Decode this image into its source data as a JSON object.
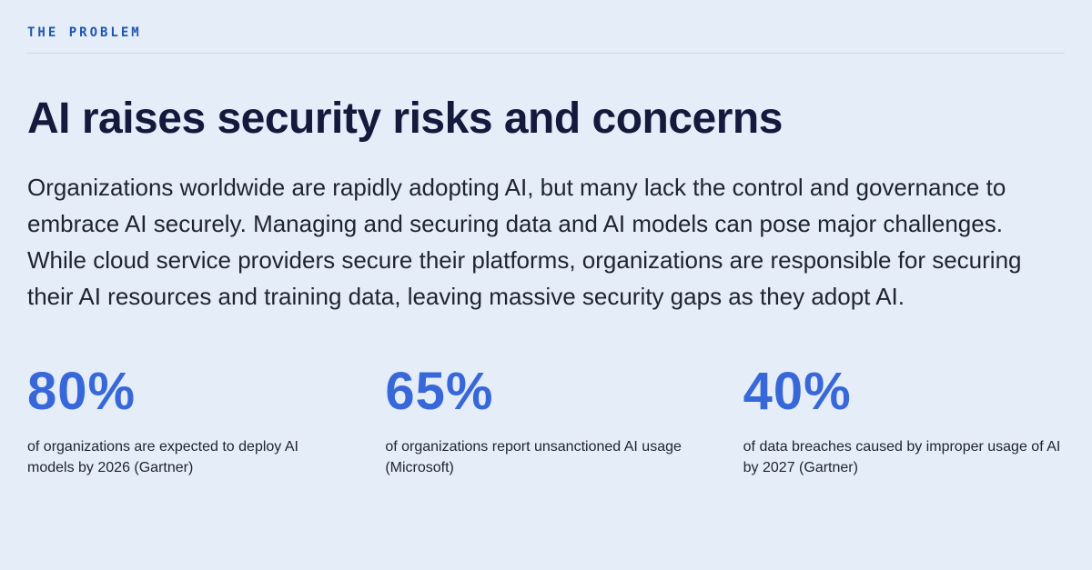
{
  "page": {
    "colors": {
      "background": "#e4edf8",
      "eyebrow_blue": "#1e55b2",
      "heading_navy": "#141a3c",
      "body_text": "#1f2430",
      "stat_blue": "#3767d9",
      "divider": "#ccd9e9"
    }
  },
  "eyebrow": {
    "label": "THE PROBLEM"
  },
  "heading": {
    "title": "AI raises security risks and concerns"
  },
  "intro": {
    "text": "Organizations worldwide are rapidly adopting AI, but many lack the control and governance to embrace AI securely. Managing and securing data and AI models can pose major challenges. While cloud service providers secure their platforms, organizations are responsible for securing their AI resources and training data, leaving massive security gaps as they adopt AI."
  },
  "stats": [
    {
      "value": "80%",
      "description": "of organizations are expected to deploy AI models by 2026 (Gartner)"
    },
    {
      "value": "65%",
      "description": "of organizations report unsanctioned AI usage (Microsoft)"
    },
    {
      "value": "40%",
      "description": "of data breaches caused by improper usage of AI by 2027 (Gartner)"
    }
  ]
}
